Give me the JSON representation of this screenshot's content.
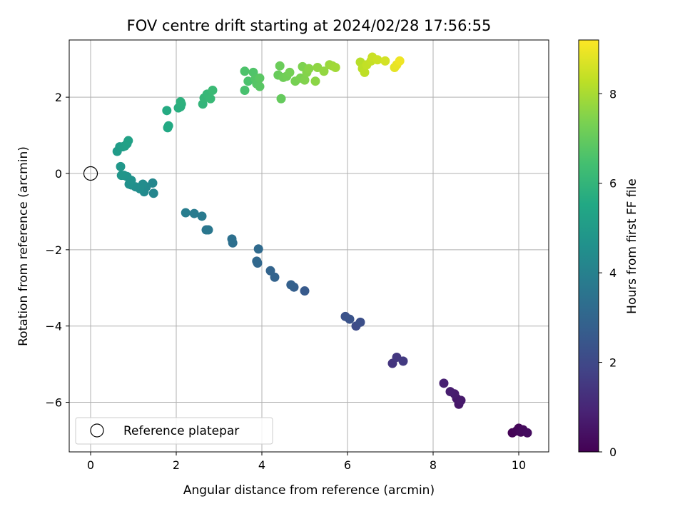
{
  "chart_data": {
    "type": "scatter",
    "title": "FOV centre drift starting at 2024/02/28 17:56:55",
    "xlabel": "Angular distance from reference (arcmin)",
    "ylabel": "Rotation from reference (arcmin)",
    "xlim": [
      -0.5,
      10.7
    ],
    "ylim": [
      -7.3,
      3.5
    ],
    "xticks": [
      0,
      2,
      4,
      6,
      8,
      10
    ],
    "yticks": [
      -6,
      -4,
      -2,
      0,
      2
    ],
    "grid": true,
    "legend": {
      "placement": "lower-left",
      "entries": [
        "Reference platepar"
      ]
    },
    "reference_point": {
      "x": 0,
      "y": 0,
      "label": "Reference platepar"
    },
    "colorbar": {
      "label": "Hours from first FF file",
      "range": [
        0,
        9.2
      ],
      "ticks": [
        0,
        2,
        4,
        6,
        8
      ],
      "colormap": "viridis"
    },
    "points": [
      {
        "x": 9.85,
        "y": -6.8,
        "c": 0.05
      },
      {
        "x": 9.95,
        "y": -6.75,
        "c": 0.1
      },
      {
        "x": 10.0,
        "y": -6.68,
        "c": 0.15
      },
      {
        "x": 10.05,
        "y": -6.78,
        "c": 0.2
      },
      {
        "x": 10.1,
        "y": -6.72,
        "c": 0.25
      },
      {
        "x": 10.2,
        "y": -6.8,
        "c": 0.3
      },
      {
        "x": 8.6,
        "y": -6.05,
        "c": 0.55
      },
      {
        "x": 8.55,
        "y": -5.9,
        "c": 0.6
      },
      {
        "x": 8.65,
        "y": -5.95,
        "c": 0.65
      },
      {
        "x": 8.5,
        "y": -5.78,
        "c": 0.7
      },
      {
        "x": 8.4,
        "y": -5.72,
        "c": 0.75
      },
      {
        "x": 8.25,
        "y": -5.5,
        "c": 0.85
      },
      {
        "x": 7.05,
        "y": -4.98,
        "c": 1.4
      },
      {
        "x": 7.15,
        "y": -4.82,
        "c": 1.5
      },
      {
        "x": 7.3,
        "y": -4.92,
        "c": 1.55
      },
      {
        "x": 6.2,
        "y": -4.0,
        "c": 2.1
      },
      {
        "x": 6.3,
        "y": -3.9,
        "c": 2.2
      },
      {
        "x": 5.95,
        "y": -3.75,
        "c": 2.3
      },
      {
        "x": 6.05,
        "y": -3.82,
        "c": 2.35
      },
      {
        "x": 5.0,
        "y": -3.08,
        "c": 2.6
      },
      {
        "x": 4.75,
        "y": -2.98,
        "c": 2.75
      },
      {
        "x": 4.68,
        "y": -2.92,
        "c": 2.85
      },
      {
        "x": 4.3,
        "y": -2.72,
        "c": 2.9
      },
      {
        "x": 4.2,
        "y": -2.55,
        "c": 2.95
      },
      {
        "x": 3.9,
        "y": -2.35,
        "c": 3.05
      },
      {
        "x": 3.88,
        "y": -2.3,
        "c": 3.1
      },
      {
        "x": 3.92,
        "y": -1.98,
        "c": 3.15
      },
      {
        "x": 3.32,
        "y": -1.82,
        "c": 3.35
      },
      {
        "x": 3.3,
        "y": -1.72,
        "c": 3.4
      },
      {
        "x": 2.7,
        "y": -1.48,
        "c": 3.6
      },
      {
        "x": 2.75,
        "y": -1.48,
        "c": 3.65
      },
      {
        "x": 2.6,
        "y": -1.12,
        "c": 3.75
      },
      {
        "x": 2.42,
        "y": -1.05,
        "c": 3.8
      },
      {
        "x": 2.22,
        "y": -1.03,
        "c": 3.85
      },
      {
        "x": 1.47,
        "y": -0.52,
        "c": 4.2
      },
      {
        "x": 1.45,
        "y": -0.25,
        "c": 4.25
      },
      {
        "x": 1.3,
        "y": -0.35,
        "c": 4.3
      },
      {
        "x": 1.25,
        "y": -0.48,
        "c": 4.35
      },
      {
        "x": 1.22,
        "y": -0.28,
        "c": 4.4
      },
      {
        "x": 1.15,
        "y": -0.4,
        "c": 4.45
      },
      {
        "x": 1.05,
        "y": -0.35,
        "c": 4.5
      },
      {
        "x": 0.95,
        "y": -0.3,
        "c": 4.55
      },
      {
        "x": 0.9,
        "y": -0.28,
        "c": 4.6
      },
      {
        "x": 0.95,
        "y": -0.18,
        "c": 4.65
      },
      {
        "x": 0.85,
        "y": -0.08,
        "c": 4.7
      },
      {
        "x": 0.78,
        "y": -0.05,
        "c": 4.75
      },
      {
        "x": 0.72,
        "y": -0.05,
        "c": 4.8
      },
      {
        "x": 0.7,
        "y": 0.18,
        "c": 4.85
      },
      {
        "x": 0.62,
        "y": 0.58,
        "c": 5.0
      },
      {
        "x": 0.68,
        "y": 0.7,
        "c": 5.05
      },
      {
        "x": 0.75,
        "y": 0.7,
        "c": 5.1
      },
      {
        "x": 0.8,
        "y": 0.72,
        "c": 5.15
      },
      {
        "x": 0.85,
        "y": 0.78,
        "c": 5.2
      },
      {
        "x": 0.88,
        "y": 0.86,
        "c": 5.25
      },
      {
        "x": 1.8,
        "y": 1.2,
        "c": 5.5
      },
      {
        "x": 1.82,
        "y": 1.25,
        "c": 5.55
      },
      {
        "x": 1.78,
        "y": 1.65,
        "c": 5.6
      },
      {
        "x": 2.05,
        "y": 1.72,
        "c": 5.7
      },
      {
        "x": 2.1,
        "y": 1.75,
        "c": 5.75
      },
      {
        "x": 2.12,
        "y": 1.82,
        "c": 5.8
      },
      {
        "x": 2.1,
        "y": 1.88,
        "c": 5.85
      },
      {
        "x": 2.62,
        "y": 1.82,
        "c": 6.0
      },
      {
        "x": 2.65,
        "y": 1.98,
        "c": 6.05
      },
      {
        "x": 2.72,
        "y": 2.08,
        "c": 6.1
      },
      {
        "x": 2.8,
        "y": 1.96,
        "c": 6.15
      },
      {
        "x": 2.85,
        "y": 2.18,
        "c": 6.2
      },
      {
        "x": 3.6,
        "y": 2.18,
        "c": 6.5
      },
      {
        "x": 3.68,
        "y": 2.42,
        "c": 6.55
      },
      {
        "x": 3.6,
        "y": 2.68,
        "c": 6.6
      },
      {
        "x": 3.8,
        "y": 2.65,
        "c": 6.65
      },
      {
        "x": 3.85,
        "y": 2.48,
        "c": 6.7
      },
      {
        "x": 3.88,
        "y": 2.35,
        "c": 6.75
      },
      {
        "x": 3.95,
        "y": 2.28,
        "c": 6.8
      },
      {
        "x": 3.95,
        "y": 2.5,
        "c": 6.82
      },
      {
        "x": 4.45,
        "y": 1.96,
        "c": 7.0
      },
      {
        "x": 4.38,
        "y": 2.58,
        "c": 7.05
      },
      {
        "x": 4.42,
        "y": 2.82,
        "c": 7.1
      },
      {
        "x": 4.5,
        "y": 2.52,
        "c": 7.15
      },
      {
        "x": 4.58,
        "y": 2.55,
        "c": 7.2
      },
      {
        "x": 4.65,
        "y": 2.65,
        "c": 7.25
      },
      {
        "x": 4.78,
        "y": 2.42,
        "c": 7.3
      },
      {
        "x": 4.9,
        "y": 2.5,
        "c": 7.35
      },
      {
        "x": 4.95,
        "y": 2.8,
        "c": 7.4
      },
      {
        "x": 5.0,
        "y": 2.45,
        "c": 7.45
      },
      {
        "x": 5.05,
        "y": 2.65,
        "c": 7.5
      },
      {
        "x": 5.1,
        "y": 2.75,
        "c": 7.55
      },
      {
        "x": 5.25,
        "y": 2.42,
        "c": 7.6
      },
      {
        "x": 5.3,
        "y": 2.78,
        "c": 7.65
      },
      {
        "x": 5.45,
        "y": 2.68,
        "c": 7.7
      },
      {
        "x": 5.58,
        "y": 2.85,
        "c": 7.8
      },
      {
        "x": 5.65,
        "y": 2.82,
        "c": 7.85
      },
      {
        "x": 5.72,
        "y": 2.78,
        "c": 7.9
      },
      {
        "x": 6.3,
        "y": 2.92,
        "c": 8.2
      },
      {
        "x": 6.35,
        "y": 2.75,
        "c": 8.25
      },
      {
        "x": 6.4,
        "y": 2.65,
        "c": 8.3
      },
      {
        "x": 6.45,
        "y": 2.85,
        "c": 8.35
      },
      {
        "x": 6.55,
        "y": 2.95,
        "c": 8.4
      },
      {
        "x": 6.58,
        "y": 3.05,
        "c": 8.45
      },
      {
        "x": 6.7,
        "y": 2.98,
        "c": 8.5
      },
      {
        "x": 6.88,
        "y": 2.95,
        "c": 8.6
      },
      {
        "x": 7.1,
        "y": 2.78,
        "c": 8.85
      },
      {
        "x": 7.15,
        "y": 2.85,
        "c": 8.9
      },
      {
        "x": 7.22,
        "y": 2.95,
        "c": 9.0
      }
    ]
  }
}
